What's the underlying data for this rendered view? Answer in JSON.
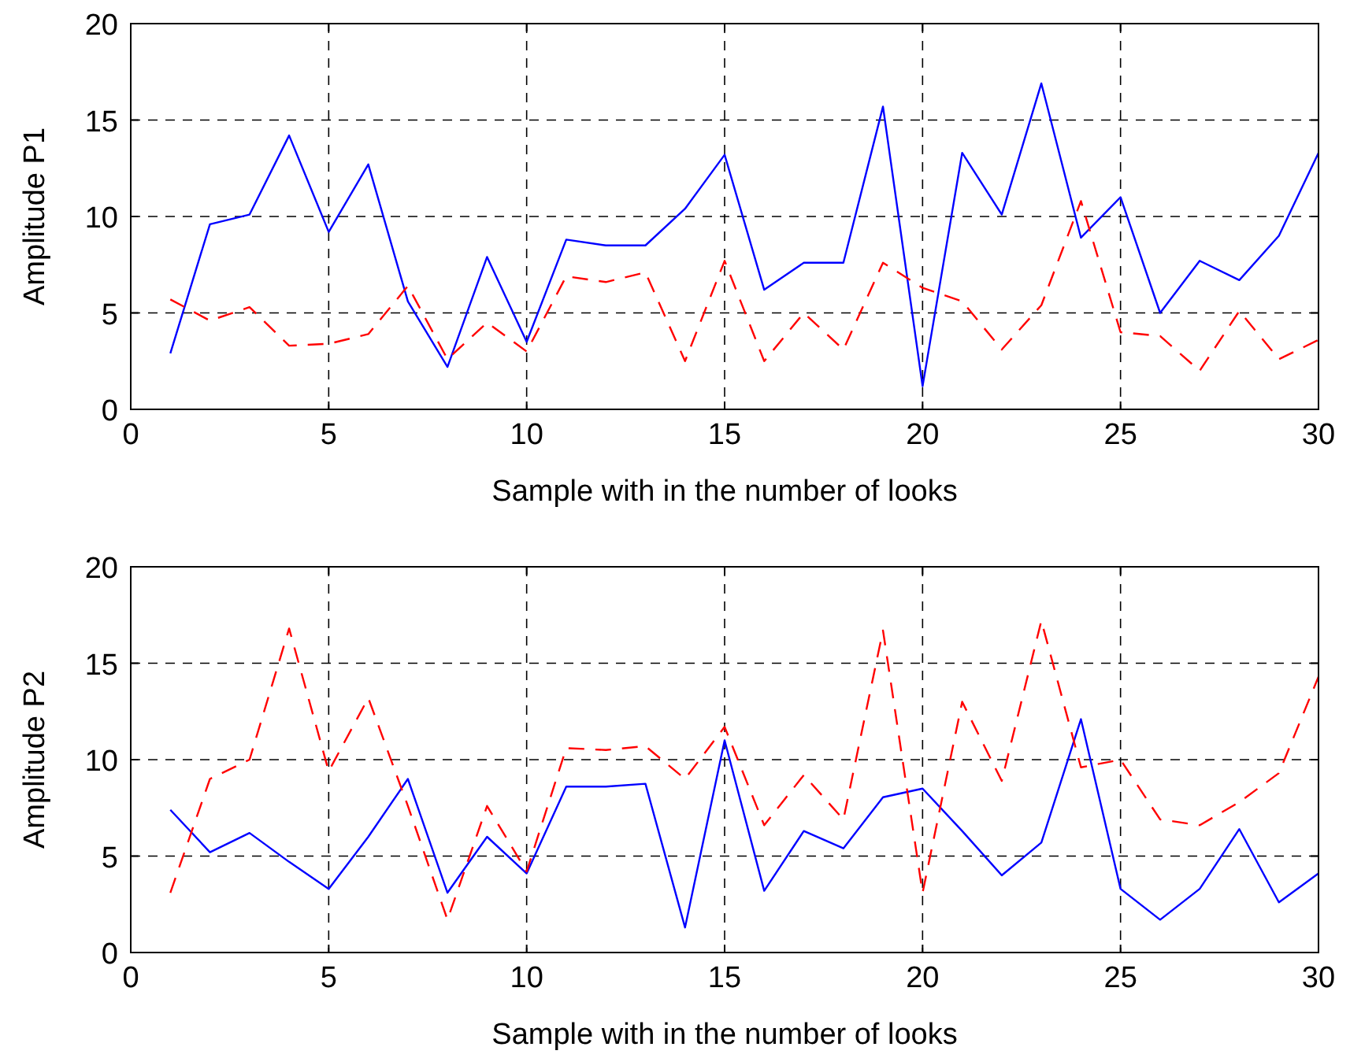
{
  "chart_data": [
    {
      "type": "line",
      "xlabel": "Sample with in the number of looks",
      "ylabel": "Amplitude P1",
      "x": [
        1,
        2,
        3,
        4,
        5,
        6,
        7,
        8,
        9,
        10,
        11,
        12,
        13,
        14,
        15,
        16,
        17,
        18,
        19,
        20,
        21,
        22,
        23,
        24,
        25,
        26,
        27,
        28,
        29,
        30
      ],
      "xlim": [
        0,
        30
      ],
      "xticks": [
        0,
        5,
        10,
        15,
        20,
        25,
        30
      ],
      "ylim": [
        0,
        20
      ],
      "yticks": [
        0,
        5,
        10,
        15,
        20
      ],
      "grid": true,
      "series": [
        {
          "color": "#0000ff",
          "line_style": "solid",
          "values": [
            2.9,
            9.6,
            10.1,
            14.2,
            9.2,
            12.7,
            5.6,
            2.2,
            7.9,
            3.5,
            8.8,
            8.5,
            8.5,
            10.4,
            13.2,
            6.2,
            7.6,
            7.6,
            15.7,
            1.2,
            13.3,
            10.1,
            16.9,
            8.9,
            11.0,
            5.0,
            7.7,
            6.7,
            9.0,
            13.3
          ]
        },
        {
          "color": "#ff0000",
          "line_style": "dashed",
          "values": [
            5.7,
            4.6,
            5.3,
            3.3,
            3.4,
            3.9,
            6.4,
            2.6,
            4.5,
            3.0,
            6.9,
            6.6,
            7.1,
            2.5,
            7.7,
            2.5,
            5.0,
            3.1,
            7.6,
            6.3,
            5.6,
            3.1,
            5.4,
            10.8,
            4.0,
            3.8,
            2.0,
            5.1,
            2.6,
            3.6
          ]
        }
      ]
    },
    {
      "type": "line",
      "xlabel": "Sample with in the number of looks",
      "ylabel": "Amplitude P2",
      "x": [
        1,
        2,
        3,
        4,
        5,
        6,
        7,
        8,
        9,
        10,
        11,
        12,
        13,
        14,
        15,
        16,
        17,
        18,
        19,
        20,
        21,
        22,
        23,
        24,
        25,
        26,
        27,
        28,
        29,
        30
      ],
      "xlim": [
        0,
        30
      ],
      "xticks": [
        0,
        5,
        10,
        15,
        20,
        25,
        30
      ],
      "ylim": [
        0,
        20
      ],
      "yticks": [
        0,
        5,
        10,
        15,
        20
      ],
      "grid": true,
      "series": [
        {
          "color": "#0000ff",
          "line_style": "solid",
          "values": [
            7.4,
            5.2,
            6.2,
            4.7,
            3.3,
            6.0,
            9.0,
            3.1,
            6.0,
            4.1,
            8.6,
            8.6,
            8.75,
            1.3,
            11.0,
            3.2,
            6.3,
            5.4,
            8.05,
            8.5,
            6.3,
            4.0,
            5.7,
            12.1,
            3.3,
            1.7,
            3.3,
            6.4,
            2.6,
            4.1
          ]
        },
        {
          "color": "#ff0000",
          "line_style": "dashed",
          "values": [
            3.1,
            9.0,
            10.0,
            16.8,
            9.4,
            13.2,
            7.6,
            1.7,
            7.6,
            4.2,
            10.6,
            10.5,
            10.7,
            9.0,
            11.7,
            6.6,
            9.2,
            6.9,
            16.7,
            3.1,
            13.0,
            8.9,
            17.2,
            9.6,
            10.0,
            6.9,
            6.6,
            7.8,
            9.3,
            14.3
          ]
        }
      ]
    }
  ]
}
